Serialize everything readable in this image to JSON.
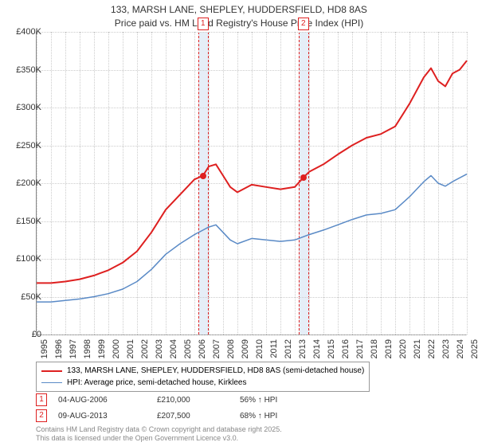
{
  "title_line1": "133, MARSH LANE, SHEPLEY, HUDDERSFIELD, HD8 8AS",
  "title_line2": "Price paid vs. HM Land Registry's House Price Index (HPI)",
  "chart": {
    "type": "line",
    "background_color": "#ffffff",
    "grid_color": "#cccccc",
    "x_years": [
      1995,
      1996,
      1997,
      1998,
      1999,
      2000,
      2001,
      2002,
      2003,
      2004,
      2005,
      2006,
      2007,
      2008,
      2009,
      2010,
      2011,
      2012,
      2013,
      2014,
      2015,
      2016,
      2017,
      2018,
      2019,
      2020,
      2021,
      2022,
      2023,
      2024,
      2025
    ],
    "ylim": [
      0,
      400000
    ],
    "yticks": [
      0,
      50000,
      100000,
      150000,
      200000,
      250000,
      300000,
      350000,
      400000
    ],
    "ytick_labels": [
      "£0",
      "£50K",
      "£100K",
      "£150K",
      "£200K",
      "£250K",
      "£300K",
      "£350K",
      "£400K"
    ],
    "series": [
      {
        "name": "133, MARSH LANE, SHEPLEY, HUDDERSFIELD, HD8 8AS (semi-detached house)",
        "color": "#de2020",
        "stroke_width": 2,
        "data": [
          [
            1995,
            68000
          ],
          [
            1996,
            68000
          ],
          [
            1997,
            70000
          ],
          [
            1998,
            73000
          ],
          [
            1999,
            78000
          ],
          [
            2000,
            85000
          ],
          [
            2001,
            95000
          ],
          [
            2002,
            110000
          ],
          [
            2003,
            135000
          ],
          [
            2004,
            165000
          ],
          [
            2005,
            185000
          ],
          [
            2006,
            205000
          ],
          [
            2006.6,
            210000
          ],
          [
            2007,
            222000
          ],
          [
            2007.5,
            225000
          ],
          [
            2008,
            210000
          ],
          [
            2008.5,
            195000
          ],
          [
            2009,
            188000
          ],
          [
            2010,
            198000
          ],
          [
            2011,
            195000
          ],
          [
            2012,
            192000
          ],
          [
            2013,
            195000
          ],
          [
            2013.6,
            207500
          ],
          [
            2014,
            215000
          ],
          [
            2015,
            225000
          ],
          [
            2016,
            238000
          ],
          [
            2017,
            250000
          ],
          [
            2018,
            260000
          ],
          [
            2019,
            265000
          ],
          [
            2020,
            275000
          ],
          [
            2021,
            305000
          ],
          [
            2022,
            340000
          ],
          [
            2022.5,
            352000
          ],
          [
            2023,
            335000
          ],
          [
            2023.5,
            328000
          ],
          [
            2024,
            345000
          ],
          [
            2024.5,
            350000
          ],
          [
            2025,
            362000
          ]
        ]
      },
      {
        "name": "HPI: Average price, semi-detached house, Kirklees",
        "color": "#5a8ac6",
        "stroke_width": 1.5,
        "data": [
          [
            1995,
            43000
          ],
          [
            1996,
            43000
          ],
          [
            1997,
            45000
          ],
          [
            1998,
            47000
          ],
          [
            1999,
            50000
          ],
          [
            2000,
            54000
          ],
          [
            2001,
            60000
          ],
          [
            2002,
            70000
          ],
          [
            2003,
            86000
          ],
          [
            2004,
            106000
          ],
          [
            2005,
            120000
          ],
          [
            2006,
            132000
          ],
          [
            2007,
            142000
          ],
          [
            2007.5,
            145000
          ],
          [
            2008,
            135000
          ],
          [
            2008.5,
            125000
          ],
          [
            2009,
            120000
          ],
          [
            2010,
            127000
          ],
          [
            2011,
            125000
          ],
          [
            2012,
            123000
          ],
          [
            2013,
            125000
          ],
          [
            2014,
            132000
          ],
          [
            2015,
            138000
          ],
          [
            2016,
            145000
          ],
          [
            2017,
            152000
          ],
          [
            2018,
            158000
          ],
          [
            2019,
            160000
          ],
          [
            2020,
            165000
          ],
          [
            2021,
            182000
          ],
          [
            2022,
            202000
          ],
          [
            2022.5,
            210000
          ],
          [
            2023,
            200000
          ],
          [
            2023.5,
            196000
          ],
          [
            2024,
            202000
          ],
          [
            2025,
            212000
          ]
        ]
      }
    ],
    "bands": [
      {
        "x_start": 2006.3,
        "x_end": 2006.9,
        "marker": "1"
      },
      {
        "x_start": 2013.3,
        "x_end": 2013.9,
        "marker": "2"
      }
    ],
    "sale_points": [
      {
        "x": 2006.6,
        "y": 210000,
        "color": "#de2020"
      },
      {
        "x": 2013.6,
        "y": 207500,
        "color": "#de2020"
      }
    ]
  },
  "legend": {
    "items": [
      {
        "color": "#de2020",
        "width": 2,
        "label": "133, MARSH LANE, SHEPLEY, HUDDERSFIELD, HD8 8AS (semi-detached house)"
      },
      {
        "color": "#5a8ac6",
        "width": 1.5,
        "label": "HPI: Average price, semi-detached house, Kirklees"
      }
    ]
  },
  "sales": [
    {
      "marker": "1",
      "date": "04-AUG-2006",
      "price": "£210,000",
      "delta": "56% ↑ HPI"
    },
    {
      "marker": "2",
      "date": "09-AUG-2013",
      "price": "£207,500",
      "delta": "68% ↑ HPI"
    }
  ],
  "footer_line1": "Contains HM Land Registry data © Crown copyright and database right 2025.",
  "footer_line2": "This data is licensed under the Open Government Licence v3.0."
}
